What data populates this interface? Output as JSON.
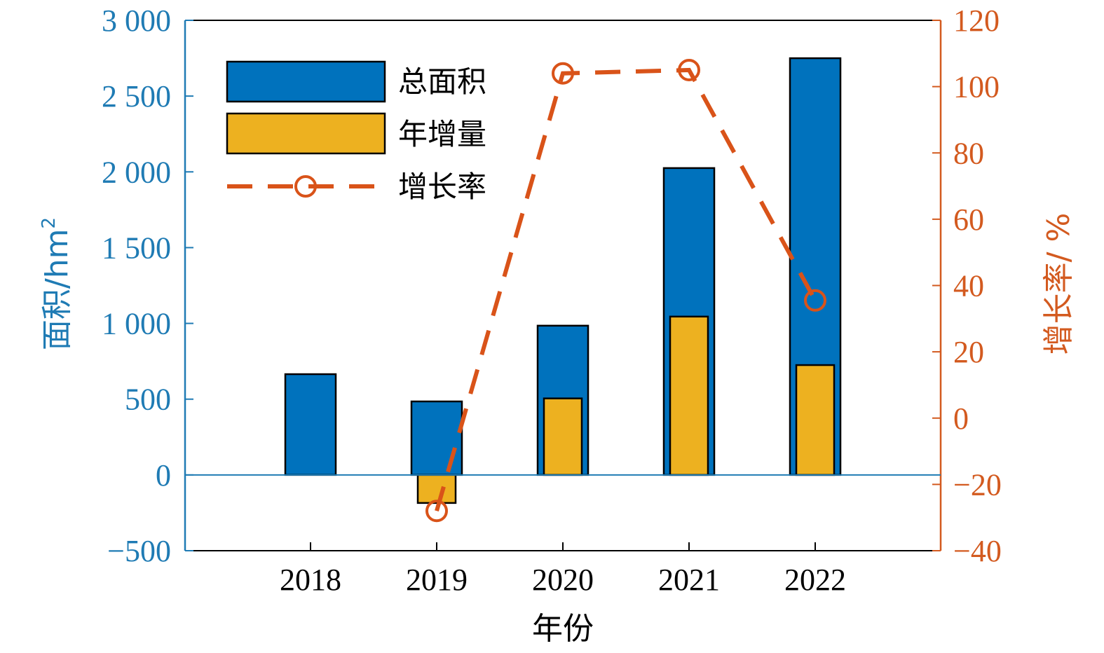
{
  "colors": {
    "left_axis": "#1f7bb4",
    "right_axis": "#d35a1f",
    "total_bar": "#0072bd",
    "increment_bar": "#edb120",
    "growth_line": "#d95319",
    "bar_outline": "#000000"
  },
  "chart_data": {
    "type": "bar",
    "categories": [
      "2018",
      "2019",
      "2020",
      "2021",
      "2022"
    ],
    "xlabel": "年份",
    "ylabel_left": "面积/hm",
    "ylabel_left_superscript": "2",
    "ylabel_right": "增长率/ %",
    "ylim_left": [
      -500,
      3000
    ],
    "ylim_right": [
      -40,
      120
    ],
    "yticks_left": [
      "−500",
      "0",
      "500",
      "1 000",
      "1 500",
      "2 000",
      "2 500",
      "3 000"
    ],
    "yticks_left_values": [
      -500,
      0,
      500,
      1000,
      1500,
      2000,
      2500,
      3000
    ],
    "yticks_right": [
      "−40",
      "−20",
      "0",
      "20",
      "40",
      "60",
      "80",
      "100",
      "120"
    ],
    "yticks_right_values": [
      -40,
      -20,
      0,
      20,
      40,
      60,
      80,
      100,
      120
    ],
    "legend_position": "top-left",
    "grid": false,
    "series": [
      {
        "name": "总面积",
        "type": "bar",
        "axis": "left",
        "values": [
          665,
          485,
          985,
          2025,
          2750
        ]
      },
      {
        "name": "年增量",
        "type": "bar",
        "axis": "left",
        "values": [
          null,
          -185,
          505,
          1045,
          725
        ]
      },
      {
        "name": "增长率",
        "type": "line",
        "axis": "right",
        "style": "dashed",
        "marker": "circle",
        "values": [
          null,
          -28,
          104,
          105,
          35.5
        ]
      }
    ]
  }
}
